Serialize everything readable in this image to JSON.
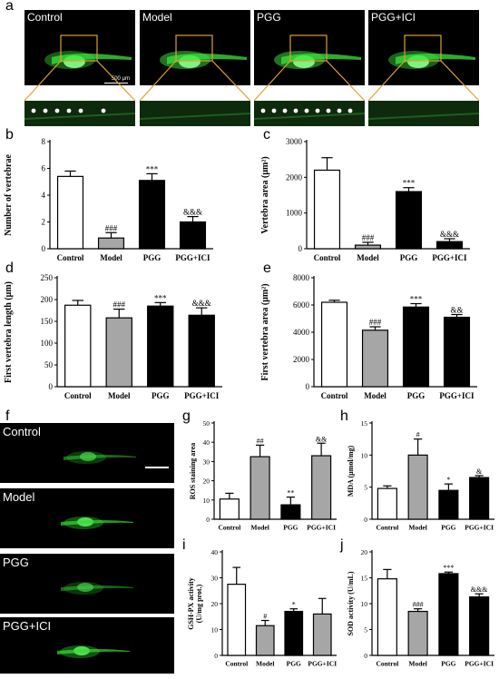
{
  "panel_letters": {
    "a": "a",
    "b": "b",
    "c": "c",
    "d": "d",
    "e": "e",
    "f": "f",
    "g": "g",
    "h": "h",
    "i": "i",
    "j": "j"
  },
  "microscopy": {
    "titles": [
      "Control",
      "Model",
      "PGG",
      "PGG+ICI"
    ],
    "scale_bar": "500 μm",
    "vertebra_dots": [
      6,
      0,
      9,
      0
    ],
    "colors": {
      "fluorescence": "#39e639",
      "box": "#e0a030"
    }
  },
  "fish_images": {
    "titles": [
      "Control",
      "Model",
      "PGG",
      "PGG+ICI"
    ]
  },
  "chart_data": [
    {
      "id": "b",
      "type": "bar",
      "categories": [
        "Control",
        "Model",
        "PGG",
        "PGG+ICI"
      ],
      "values": [
        5.4,
        0.8,
        5.1,
        2.0
      ],
      "errors": [
        0.4,
        0.4,
        0.5,
        0.4
      ],
      "significance": [
        "",
        "###",
        "***",
        "&&&"
      ],
      "ylabel": "Number of vertebrae",
      "ylim": [
        0,
        8
      ],
      "yticks": [
        0,
        2,
        4,
        6,
        8
      ],
      "colors": [
        "#ffffff",
        "#a6a6a6",
        "#000000",
        "#000000"
      ]
    },
    {
      "id": "c",
      "type": "bar",
      "categories": [
        "Control",
        "Model",
        "PGG",
        "PGG+ICI"
      ],
      "values": [
        2200,
        100,
        1600,
        200
      ],
      "errors": [
        350,
        80,
        110,
        80
      ],
      "significance": [
        "",
        "###",
        "***",
        "&&&"
      ],
      "ylabel": "Vertebra area (μm²)",
      "ylim": [
        0,
        3000
      ],
      "yticks": [
        0,
        1000,
        2000,
        3000
      ],
      "colors": [
        "#ffffff",
        "#a6a6a6",
        "#000000",
        "#000000"
      ]
    },
    {
      "id": "d",
      "type": "bar",
      "categories": [
        "Control",
        "Model",
        "PGG",
        "PGG+ICI"
      ],
      "values": [
        187,
        158,
        185,
        164
      ],
      "errors": [
        11,
        20,
        8,
        17
      ],
      "significance": [
        "",
        "###",
        "***",
        "&&&"
      ],
      "ylabel": "First vertebra length (μm)",
      "ylim": [
        0,
        250
      ],
      "yticks": [
        0,
        50,
        100,
        150,
        200,
        250
      ],
      "colors": [
        "#ffffff",
        "#a6a6a6",
        "#000000",
        "#000000"
      ]
    },
    {
      "id": "e",
      "type": "bar",
      "categories": [
        "Control",
        "Model",
        "PGG",
        "PGG+ICI"
      ],
      "values": [
        6200,
        4150,
        5850,
        5100
      ],
      "errors": [
        150,
        250,
        250,
        200
      ],
      "significance": [
        "",
        "###",
        "***",
        "&&"
      ],
      "ylabel": "First vertebra area (μm²)",
      "ylim": [
        0,
        8000
      ],
      "yticks": [
        0,
        2000,
        4000,
        6000,
        8000
      ],
      "colors": [
        "#ffffff",
        "#a6a6a6",
        "#000000",
        "#000000"
      ]
    },
    {
      "id": "g",
      "type": "bar",
      "categories": [
        "Control",
        "Model",
        "PGG",
        "PGG+ICI"
      ],
      "values": [
        10.5,
        32.5,
        7.5,
        33
      ],
      "errors": [
        3,
        6,
        4,
        6.5
      ],
      "significance": [
        "",
        "##",
        "**",
        "&&"
      ],
      "ylabel": "ROS staining area",
      "ylim": [
        0,
        50
      ],
      "yticks": [
        0,
        10,
        20,
        30,
        40,
        50
      ],
      "colors": [
        "#ffffff",
        "#a6a6a6",
        "#000000",
        "#a6a6a6"
      ]
    },
    {
      "id": "h",
      "type": "bar",
      "categories": [
        "Control",
        "Model",
        "PGG",
        "PGG+ICI"
      ],
      "values": [
        4.8,
        10,
        4.5,
        6.5
      ],
      "errors": [
        0.4,
        2.5,
        1,
        0.3
      ],
      "significance": [
        "",
        "#",
        "*",
        "&"
      ],
      "ylabel": "MDA (μmol/mg)",
      "ylim": [
        0,
        15
      ],
      "yticks": [
        0,
        5,
        10,
        15
      ],
      "colors": [
        "#ffffff",
        "#a6a6a6",
        "#000000",
        "#000000"
      ]
    },
    {
      "id": "i",
      "type": "bar",
      "categories": [
        "Control",
        "Model",
        "PGG",
        "PGG+ICI"
      ],
      "values": [
        27.5,
        11.5,
        17,
        16
      ],
      "errors": [
        6.5,
        2,
        1,
        6
      ],
      "significance": [
        "",
        "#",
        "*",
        ""
      ],
      "ylabel": "GSH-PX activity\n(U/mg prot.)",
      "ylim": [
        0,
        40
      ],
      "yticks": [
        0,
        10,
        20,
        30,
        40
      ],
      "colors": [
        "#ffffff",
        "#a6a6a6",
        "#000000",
        "#a6a6a6"
      ]
    },
    {
      "id": "j",
      "type": "bar",
      "categories": [
        "Control",
        "Model",
        "PGG",
        "PGG+ICI"
      ],
      "values": [
        14.8,
        8.5,
        15.8,
        11.3
      ],
      "errors": [
        1.8,
        0.5,
        0.3,
        0.6
      ],
      "significance": [
        "",
        "###",
        "***",
        "&&&"
      ],
      "ylabel": "SOD activity (U/mL)",
      "ylim": [
        0,
        20
      ],
      "yticks": [
        0,
        5,
        10,
        15,
        20
      ],
      "colors": [
        "#ffffff",
        "#a6a6a6",
        "#000000",
        "#000000"
      ]
    }
  ]
}
